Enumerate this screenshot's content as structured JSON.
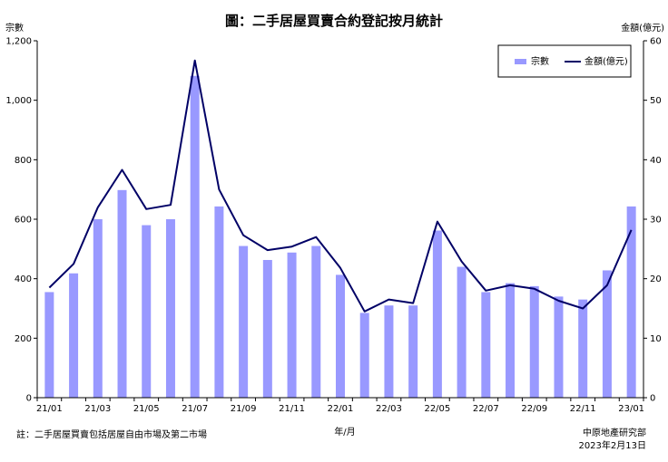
{
  "chart_data": {
    "type": "bar+line",
    "title": "圖：二手居屋買賣合約登記按月統計",
    "ylabel_left": "宗數",
    "ylabel_right": "金額(億元)",
    "xlabel": "年/月",
    "left_ylim": [
      0,
      1200
    ],
    "left_ticks": [
      0,
      200,
      400,
      600,
      800,
      1000,
      1200
    ],
    "left_tick_labels": [
      "0",
      "200",
      "400",
      "600",
      "800",
      "1,000",
      "1,200"
    ],
    "right_ylim": [
      0,
      60
    ],
    "right_ticks": [
      0,
      10,
      20,
      30,
      40,
      50,
      60
    ],
    "right_tick_labels": [
      "0",
      "10",
      "20",
      "30",
      "40",
      "50",
      "60"
    ],
    "categories": [
      "21/01",
      "21/02",
      "21/03",
      "21/04",
      "21/05",
      "21/06",
      "21/07",
      "21/08",
      "21/09",
      "21/10",
      "21/11",
      "21/12",
      "22/01",
      "22/02",
      "22/03",
      "22/04",
      "22/05",
      "22/06",
      "22/07",
      "22/08",
      "22/09",
      "22/10",
      "22/11",
      "22/12",
      "23/01"
    ],
    "x_tick_labels": [
      "21/01",
      "",
      "21/03",
      "",
      "21/05",
      "",
      "21/07",
      "",
      "21/09",
      "",
      "21/11",
      "",
      "22/01",
      "",
      "22/03",
      "",
      "22/05",
      "",
      "22/07",
      "",
      "22/09",
      "",
      "22/11",
      "",
      "23/01"
    ],
    "series": [
      {
        "name": "宗數",
        "type": "bar",
        "axis": "left",
        "color": "#9999ff",
        "values": [
          355,
          418,
          600,
          698,
          580,
          600,
          1082,
          643,
          510,
          463,
          488,
          510,
          413,
          285,
          310,
          310,
          562,
          440,
          355,
          385,
          375,
          340,
          330,
          428,
          643
        ]
      },
      {
        "name": "金額(億元)",
        "type": "line",
        "axis": "right",
        "color": "#000066",
        "values": [
          18.5,
          22.5,
          32.0,
          38.3,
          31.7,
          32.4,
          56.7,
          35.0,
          27.3,
          24.8,
          25.4,
          27.0,
          21.8,
          14.5,
          16.5,
          15.9,
          29.6,
          22.9,
          18.0,
          18.9,
          18.3,
          16.3,
          15.0,
          18.9,
          28.2
        ]
      }
    ],
    "legend_position": "top-right",
    "grid": false
  },
  "footnote": "註：二手居屋買賣包括居屋自由市場及第二市場",
  "source": "中原地產研究部",
  "date": "2023年2月13日"
}
